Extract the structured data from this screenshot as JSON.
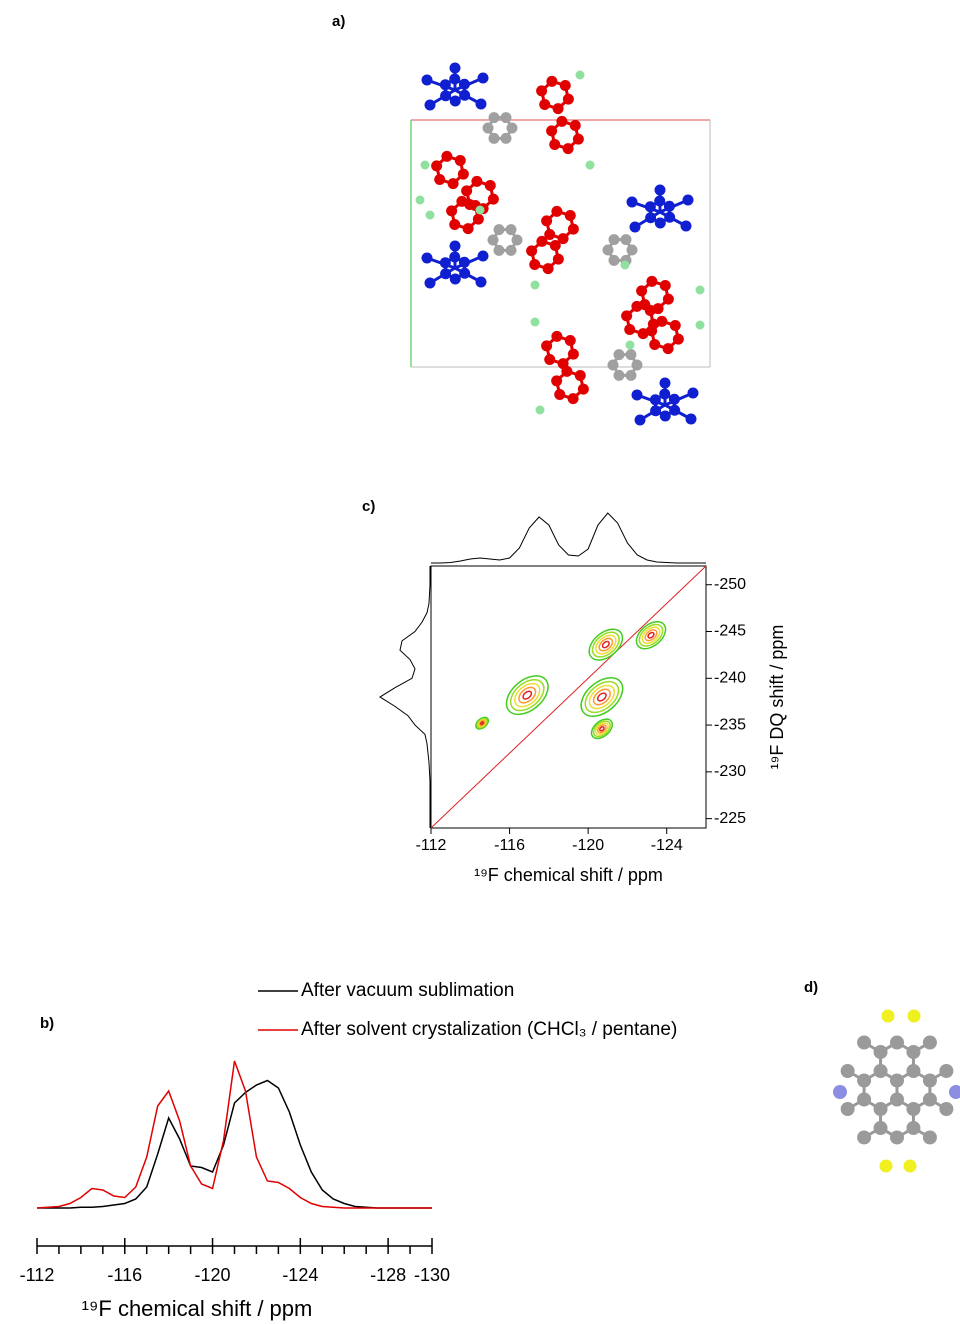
{
  "structure_panels": [
    {
      "label": "a)"
    },
    {
      "label": "d)"
    }
  ],
  "chart_data": [
    {
      "type": "contour",
      "panel_label": "c)",
      "xlabel": "¹⁹F chemical shift / ppm",
      "ylabel": "¹⁹F DQ shift / ppm",
      "xlim": [
        -112,
        -126
      ],
      "ylim": [
        -224,
        -252
      ],
      "xticks": [
        -112,
        -116,
        -120,
        -124
      ],
      "yticks": [
        -225,
        -230,
        -235,
        -240,
        -245,
        -250
      ],
      "peaks": {
        "x": [
          -116.9,
          -114.6,
          -120.7,
          -120.7,
          -120.9,
          -123.2
        ],
        "y": [
          -238.2,
          -235.2,
          -238,
          -234.6,
          -243.6,
          -244.6
        ],
        "intensity": [
          1,
          0.3,
          1,
          0.5,
          0.8,
          0.7
        ]
      },
      "contour_colors": [
        "#44cc22",
        "#99dd22",
        "#eedd33",
        "#ff9933",
        "#dd2222"
      ],
      "diagonal_color": "#e02020",
      "top_projection": {
        "x": [
          -112,
          -112.5,
          -113,
          -113.5,
          -114,
          -114.5,
          -115,
          -115.5,
          -116,
          -116.5,
          -117,
          -117.5,
          -118,
          -118.5,
          -119,
          -119.5,
          -120,
          -120.5,
          -121,
          -121.5,
          -122,
          -122.5,
          -123,
          -123.5,
          -124,
          -124.5,
          -125,
          -125.5,
          -126
        ],
        "values": [
          0,
          0,
          0.5,
          2,
          4,
          5,
          4,
          3,
          5,
          15,
          35,
          46,
          38,
          18,
          8,
          7,
          14,
          38,
          50,
          40,
          20,
          8,
          3,
          1,
          0.5,
          0,
          0,
          0,
          0
        ]
      },
      "left_projection": {
        "y": [
          -224,
          -225,
          -226,
          -227,
          -228,
          -229,
          -230,
          -231,
          -232,
          -233,
          -234,
          -235,
          -236,
          -237,
          -238,
          -239,
          -240,
          -241,
          -242,
          -243,
          -244,
          -245,
          -246,
          -247,
          -248,
          -249,
          -250,
          -251,
          -252
        ],
        "values": [
          0,
          0,
          0,
          0,
          0,
          0,
          0.5,
          1,
          2,
          3,
          5,
          15,
          22,
          35,
          50,
          35,
          18,
          15,
          20,
          30,
          28,
          15,
          8,
          3,
          1,
          0.5,
          0,
          0,
          0
        ]
      }
    },
    {
      "type": "line",
      "panel_label": "b)",
      "xlabel": "¹⁹F chemical shift / ppm",
      "xlim": [
        -112,
        -130
      ],
      "ylim": [
        0,
        100
      ],
      "xticks": [
        -112,
        -116,
        -120,
        -124,
        -128,
        -130
      ],
      "xminorticks": [
        -113,
        -114,
        -115,
        -117,
        -118,
        -119,
        -121,
        -122,
        -123,
        -125,
        -126,
        -127,
        -129
      ],
      "x": [
        -112,
        -112.5,
        -113,
        -113.5,
        -114,
        -114.5,
        -115,
        -115.5,
        -116,
        -116.5,
        -117,
        -117.5,
        -118,
        -118.5,
        -119,
        -119.5,
        -120,
        -120.5,
        -121,
        -121.5,
        -122,
        -122.5,
        -123,
        -123.5,
        -124,
        -124.5,
        -125,
        -125.5,
        -126,
        -126.5,
        -127,
        -127.5,
        -128,
        -128.5,
        -129,
        -129.5,
        -130
      ],
      "series": [
        {
          "name": "After vacuum sublimation",
          "color": "#000000",
          "values": [
            0,
            0,
            0,
            0,
            0.5,
            0.5,
            1,
            2,
            3,
            6,
            14,
            36,
            60,
            46,
            28,
            27,
            24,
            42,
            70,
            77,
            82,
            85,
            80,
            64,
            42,
            24,
            12,
            6,
            3,
            1,
            0.5,
            0,
            0,
            0,
            0,
            0,
            0
          ]
        },
        {
          "name": "After solvent crystalization (CHCl₃ / pentane)",
          "color": "#e00000",
          "values": [
            0,
            0.5,
            1,
            3,
            7,
            13,
            12,
            8,
            7,
            14,
            34,
            68,
            78,
            58,
            28,
            16,
            13,
            45,
            98,
            78,
            34,
            18,
            17,
            13,
            7,
            3,
            1,
            0.5,
            0,
            0,
            0,
            0,
            0,
            0,
            0,
            0,
            0
          ]
        }
      ]
    }
  ]
}
